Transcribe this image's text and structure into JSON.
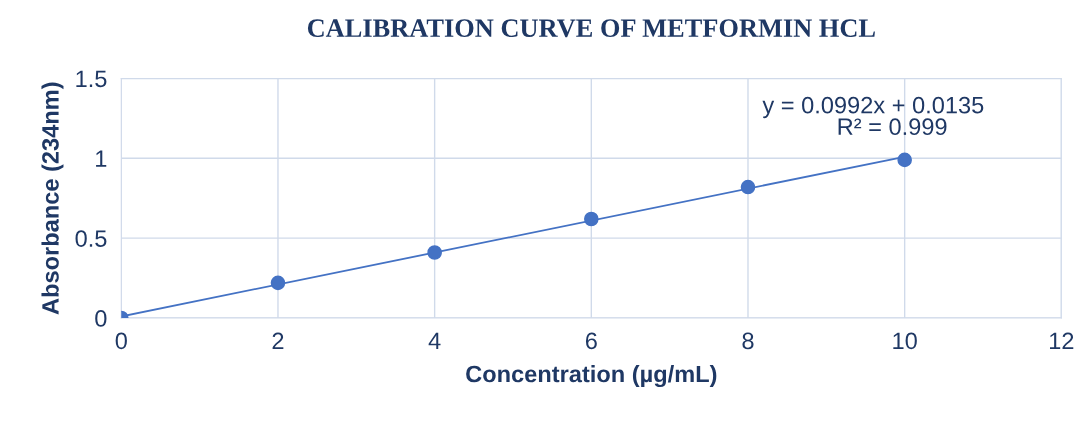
{
  "chart_data": {
    "type": "scatter",
    "title": "CALIBRATION CURVE OF METFORMIN HCL",
    "xlabel": "Concentration (µg/mL)",
    "ylabel": "Absorbance (234nm)",
    "x": [
      0,
      2,
      4,
      6,
      8,
      10
    ],
    "series": [
      {
        "color": "#4472c4",
        "values": [
          0,
          0.22,
          0.41,
          0.62,
          0.82,
          0.99
        ],
        "marker": "circle"
      },
      {
        "type": "line",
        "color": "#4472c4",
        "x": [
          0,
          10
        ],
        "values": [
          0.01,
          1.01
        ],
        "marker": "none",
        "line_style": "solid"
      }
    ],
    "annotations": [
      "y = 0.0992x + 0.0135",
      "R² = 0.999"
    ],
    "xlim": [
      0,
      12
    ],
    "xticks": [
      0,
      2,
      4,
      6,
      8,
      10,
      12
    ],
    "ylim": [
      0,
      1.5
    ],
    "yticks": [
      0,
      0.5,
      1,
      1.5
    ],
    "grid": true,
    "legend": false
  }
}
